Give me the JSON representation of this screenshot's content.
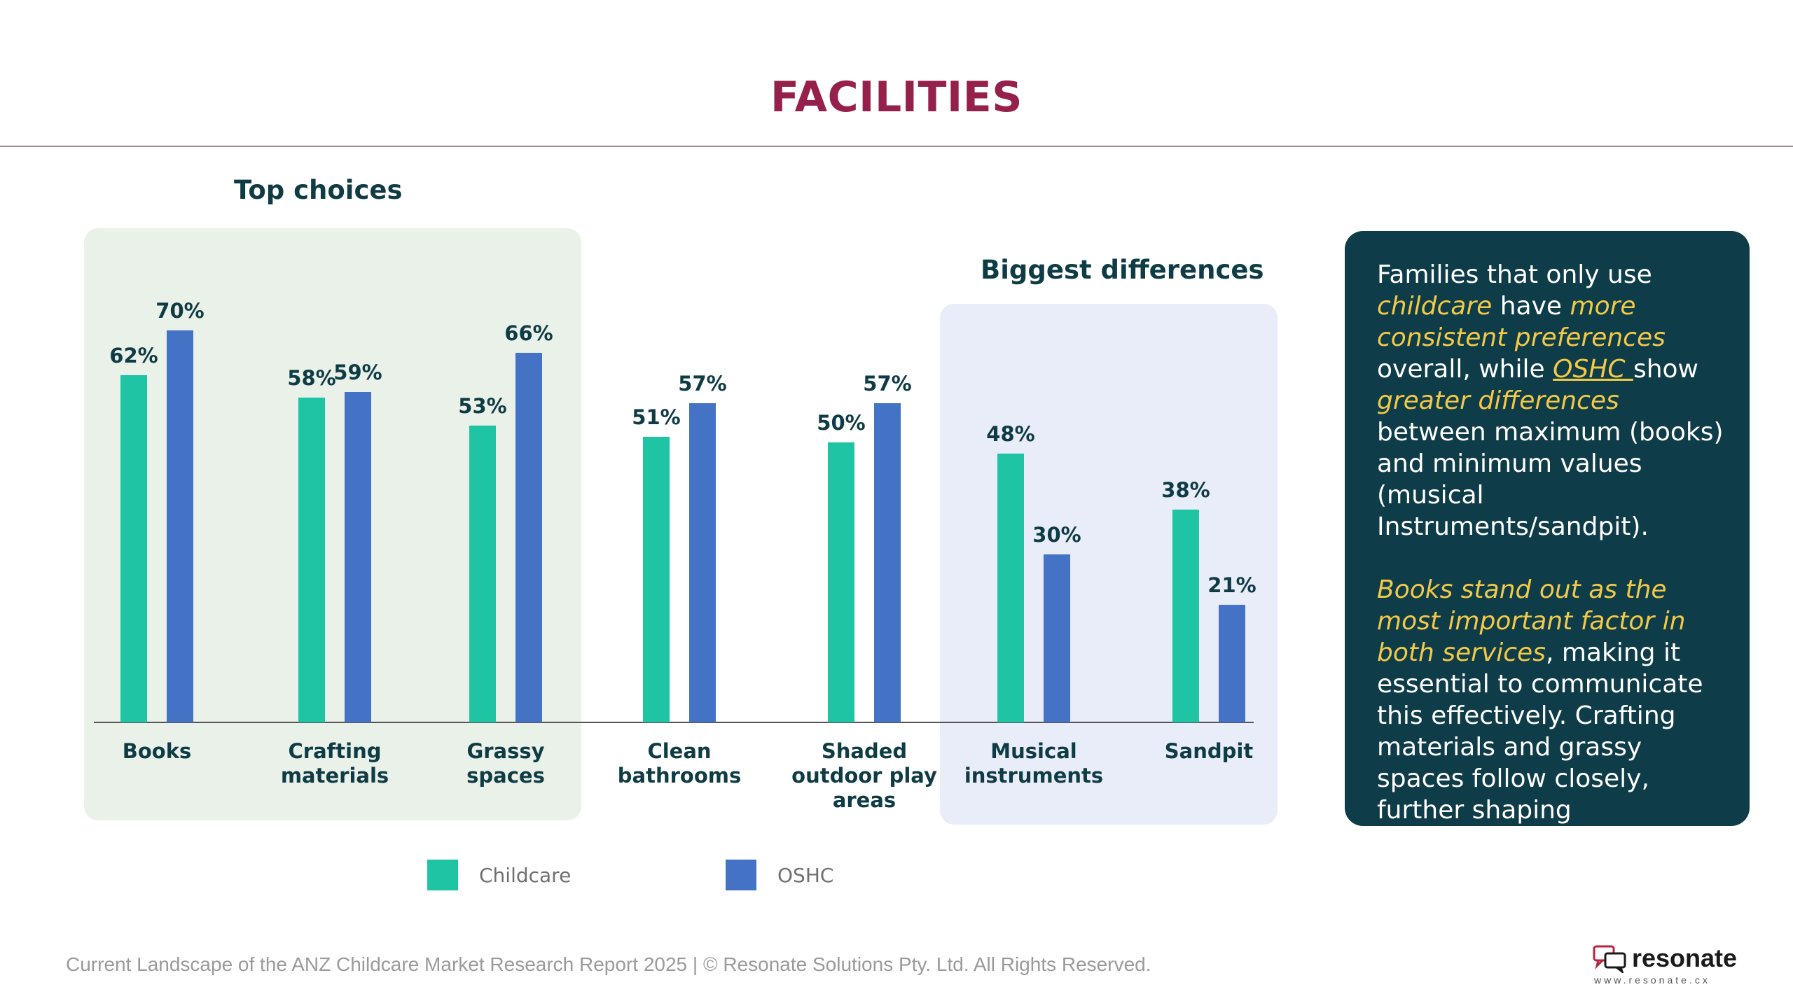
{
  "page": {
    "title": "FACILITIES"
  },
  "sections": {
    "top_choices": "Top choices",
    "biggest_differences": "Biggest differences"
  },
  "colors": {
    "childcare": "#1ec4a4",
    "oshc": "#4472c4",
    "title": "#96204c",
    "insight_bg": "#0e3c48",
    "highlight": "#f3c948"
  },
  "chart_data": {
    "type": "bar",
    "categories": [
      [
        "Books"
      ],
      [
        "Crafting",
        "materials"
      ],
      [
        "Grassy",
        "spaces"
      ],
      [
        "Clean",
        "bathrooms"
      ],
      [
        "Shaded",
        "outdoor play",
        "areas"
      ],
      [
        "Musical",
        "instruments"
      ],
      [
        "Sandpit"
      ]
    ],
    "series": [
      {
        "name": "Childcare",
        "values": [
          62,
          58,
          53,
          51,
          50,
          48,
          38
        ]
      },
      {
        "name": "OSHC",
        "values": [
          70,
          59,
          66,
          57,
          57,
          30,
          21
        ]
      }
    ],
    "value_suffix": "%",
    "ylim": [
      0,
      100
    ],
    "grid": false,
    "legend_position": "bottom"
  },
  "legend": {
    "items": [
      {
        "label": "Childcare"
      },
      {
        "label": "OSHC"
      }
    ]
  },
  "insight": {
    "p1": {
      "t1": "Families that only use ",
      "h1": "childcare",
      "t2": " have ",
      "h2": "more consistent preferences",
      "t3": " overall, while ",
      "h3": "OSHC ",
      "t4": "show ",
      "h4": "greater differences",
      "t5": " between maximum (books) and minimum values (musical Instruments/sandpit)."
    },
    "p2": {
      "h1": "Books stand out as the most important factor in both services",
      "t1": ", making it essential to communicate this effectively. Crafting materials and grassy spaces follow closely, further shaping preferences."
    }
  },
  "footer": {
    "text": "Current Landscape of the ANZ Childcare Market Research Report 2025 | © Resonate Solutions Pty. Ltd. All Rights Reserved."
  },
  "logo": {
    "name": "resonate",
    "url": "www.resonate.cx"
  }
}
